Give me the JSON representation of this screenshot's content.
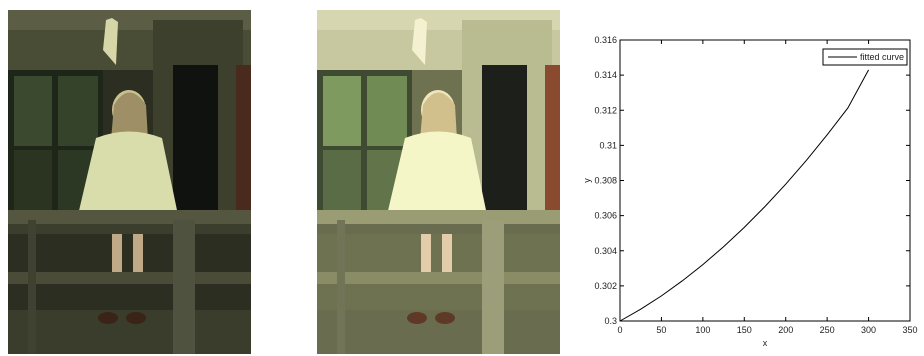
{
  "figure": {
    "panels": [
      {
        "name": "photo-original",
        "content": "girl-on-porch-dark"
      },
      {
        "name": "photo-enhanced",
        "content": "girl-on-porch-bright"
      }
    ]
  },
  "chart_data": {
    "type": "line",
    "title": "",
    "xlabel": "x",
    "ylabel": "y",
    "xlim": [
      0,
      350
    ],
    "ylim": [
      0.3,
      0.316
    ],
    "xticks": [
      0,
      50,
      100,
      150,
      200,
      250,
      300,
      350
    ],
    "yticks": [
      0.3,
      0.302,
      0.304,
      0.306,
      0.308,
      0.31,
      0.312,
      0.314,
      0.316
    ],
    "ytick_labels": [
      "0.3",
      "0.302",
      "0.304",
      "0.306",
      "0.308",
      "0.31",
      "0.312",
      "0.314",
      "0.316"
    ],
    "grid": false,
    "legend": "top-right",
    "series": [
      {
        "name": "fitted curve",
        "color": "#000000",
        "x": [
          0,
          25,
          50,
          75,
          100,
          125,
          150,
          175,
          200,
          225,
          250,
          275,
          300
        ],
        "y": [
          0.3,
          0.30067,
          0.30143,
          0.30228,
          0.30321,
          0.30423,
          0.30533,
          0.30652,
          0.30779,
          0.30915,
          0.3106,
          0.31213,
          0.3143
        ]
      }
    ]
  }
}
